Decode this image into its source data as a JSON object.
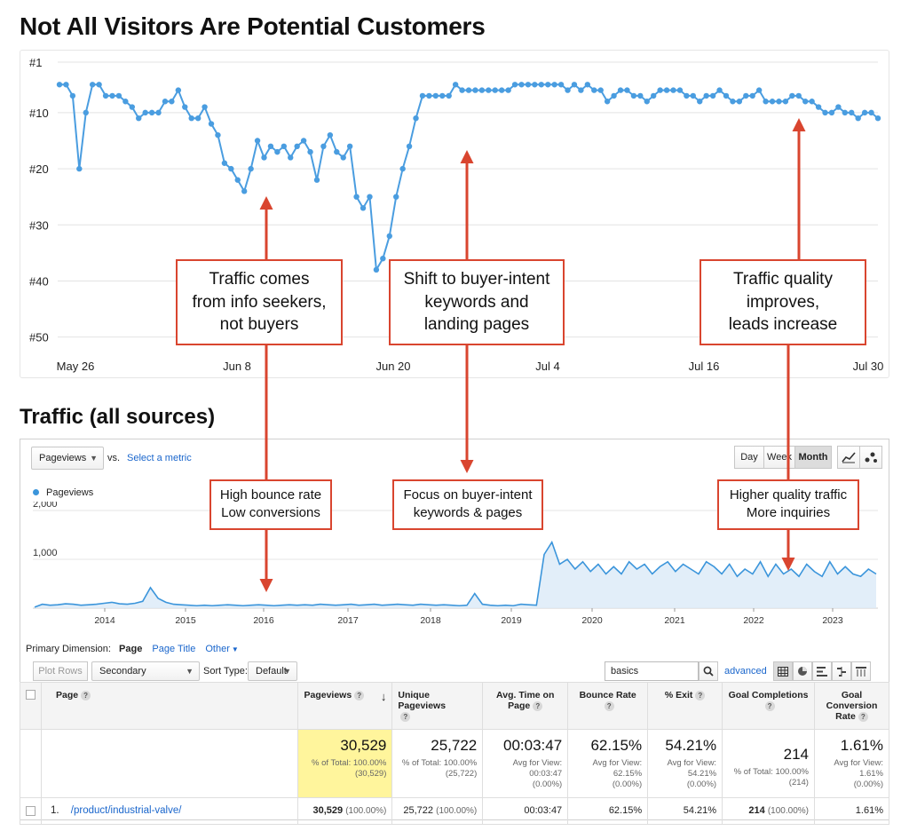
{
  "headings": {
    "rank_title": "Not All Visitors Are Potential Customers",
    "traffic_title": "Traffic (all sources)"
  },
  "rank_chart": {
    "y_ticks": [
      "#1",
      "#10",
      "#20",
      "#30",
      "#40",
      "#50"
    ],
    "x_labels": [
      "May 26",
      "Jun 8",
      "Jun 20",
      "Jul 4",
      "Jul 16",
      "Jul 30"
    ],
    "color": "#4a9de0",
    "annotation_color": "#d9452f"
  },
  "chart_data": [
    {
      "type": "line",
      "title": "Not All Visitors Are Potential Customers",
      "y_axis": "rank position (reversed, #1 at top)",
      "ylim": [
        1,
        55
      ],
      "x_range": [
        "May 26",
        "Jul 30"
      ],
      "series": [
        {
          "values": [
            5,
            5,
            7,
            20,
            10,
            5,
            5,
            7,
            7,
            7,
            8,
            9,
            11,
            10,
            10,
            10,
            8,
            8,
            6,
            9,
            11,
            11,
            9,
            12,
            14,
            19,
            20,
            22,
            24,
            20,
            15,
            18,
            16,
            17,
            16,
            18,
            16,
            15,
            17,
            22,
            16,
            14,
            17,
            18,
            16,
            25,
            27,
            25,
            38,
            36,
            32,
            25,
            20,
            16,
            11,
            7,
            7,
            7,
            7,
            7,
            5,
            6,
            6,
            6,
            6,
            6,
            6,
            6,
            6,
            5,
            5,
            5,
            5,
            5,
            5,
            5,
            5,
            6,
            5,
            6,
            5,
            6,
            6,
            8,
            7,
            6,
            6,
            7,
            7,
            8,
            7,
            6,
            6,
            6,
            6,
            7,
            7,
            8,
            7,
            7,
            6,
            7,
            8,
            8,
            7,
            7,
            6,
            8,
            8,
            8,
            8,
            7,
            7,
            8,
            8,
            9,
            10,
            10,
            9,
            10,
            10,
            11,
            10,
            10,
            11
          ]
        }
      ],
      "annotations": [
        "Traffic comes from info seekers, not buyers",
        "Shift to buyer-intent keywords and landing pages",
        "Traffic quality improves, leads increase"
      ]
    },
    {
      "type": "area",
      "title": "Pageviews",
      "x_labels": [
        "2014",
        "2015",
        "2016",
        "2017",
        "2018",
        "2019",
        "2020",
        "2021",
        "2022",
        "2023"
      ],
      "y_ticks": [
        "2,000",
        "1,000"
      ],
      "ylim": [
        0,
        2000
      ],
      "series": [
        {
          "name": "Pageviews",
          "values": [
            20,
            80,
            60,
            70,
            90,
            80,
            60,
            70,
            80,
            100,
            120,
            90,
            80,
            100,
            140,
            420,
            200,
            120,
            80,
            70,
            60,
            50,
            60,
            50,
            60,
            70,
            60,
            50,
            60,
            70,
            60,
            50,
            60,
            70,
            60,
            70,
            60,
            80,
            70,
            60,
            70,
            80,
            60,
            70,
            80,
            60,
            70,
            80,
            70,
            60,
            80,
            70,
            60,
            70,
            60,
            50,
            60,
            300,
            80,
            60,
            50,
            60,
            50,
            80,
            70,
            60,
            1100,
            1350,
            900,
            1000,
            800,
            950,
            750,
            900,
            700,
            850,
            700,
            950,
            800,
            900,
            700,
            850,
            950,
            750,
            900,
            800,
            700,
            950,
            850,
            700,
            900,
            650,
            800,
            700,
            950,
            650,
            900,
            700,
            800,
            650,
            900,
            750,
            650,
            950,
            700,
            850,
            700,
            650,
            800,
            700
          ]
        }
      ],
      "annotations": [
        "High bounce rate Low conversions",
        "Focus on buyer-intent keywords & pages",
        "Higher quality traffic More inquiries"
      ]
    }
  ],
  "callouts": {
    "rank_1": [
      "Traffic comes",
      "from info seekers,",
      "not buyers"
    ],
    "rank_2": [
      "Shift to buyer-intent",
      "keywords and",
      "landing pages"
    ],
    "rank_3": [
      "Traffic quality",
      "improves,",
      "leads increase"
    ],
    "ga_1": [
      "High bounce rate",
      "Low conversions"
    ],
    "ga_2": [
      "Focus on buyer-intent",
      "keywords & pages"
    ],
    "ga_3": [
      "Higher quality traffic",
      "More inquiries"
    ]
  },
  "ga": {
    "metric_select": "Pageviews",
    "vs": "vs.",
    "select_metric": "Select a metric",
    "period_buttons": [
      "Day",
      "Week",
      "Month"
    ],
    "active_period": "Month",
    "legend": "Pageviews",
    "y_ticks": [
      "2,000",
      "1,000"
    ],
    "x_labels": [
      "2014",
      "2015",
      "2016",
      "2017",
      "2018",
      "2019",
      "2020",
      "2021",
      "2022",
      "2023"
    ],
    "primary_dimension_label": "Primary Dimension:",
    "dim_page": "Page",
    "dim_page_title": "Page Title",
    "dim_other": "Other",
    "plot_rows": "Plot Rows",
    "secondary_dimension": "Secondary dimension",
    "sort_type_label": "Sort Type:",
    "sort_type_value": "Default",
    "search_value": "basics",
    "advanced": "advanced",
    "accent": "#1a66cc",
    "line_color": "#3b95db",
    "highlight": "#fff59c"
  },
  "table": {
    "headers": {
      "page": "Page",
      "pageviews": "Pageviews",
      "unique": "Unique Pageviews",
      "avg_time": "Avg. Time on Page",
      "bounce": "Bounce Rate",
      "exit": "% Exit",
      "goal_completions": "Goal Completions",
      "goal_rate": "Goal Conversion Rate"
    },
    "totals": {
      "pageviews": "30,529",
      "pageviews_sub1": "% of Total: 100.00%",
      "pageviews_sub2": "(30,529)",
      "unique": "25,722",
      "unique_sub1": "% of Total: 100.00%",
      "unique_sub2": "(25,722)",
      "avg_time": "00:03:47",
      "avg_time_sub1": "Avg for View:",
      "avg_time_sub2": "00:03:47",
      "avg_time_sub3": "(0.00%)",
      "bounce": "62.15%",
      "bounce_sub1": "Avg for View:",
      "bounce_sub2": "62.15%",
      "bounce_sub3": "(0.00%)",
      "exit": "54.21%",
      "exit_sub1": "Avg for View:",
      "exit_sub2": "54.21%",
      "exit_sub3": "(0.00%)",
      "goals": "214",
      "goals_sub1": "% of Total: 100.00%",
      "goals_sub2": "(214)",
      "rate": "1.61%",
      "rate_sub1": "Avg for View:",
      "rate_sub2": "1.61%",
      "rate_sub3": "(0.00%)"
    },
    "row": {
      "index": "1.",
      "page": "/product/industrial-valve/",
      "pageviews": "30,529",
      "pageviews_pct": "(100.00%)",
      "unique": "25,722",
      "unique_pct": "(100.00%)",
      "avg_time": "00:03:47",
      "bounce": "62.15%",
      "exit": "54.21%",
      "goals": "214",
      "goals_pct": "(100.00%)",
      "rate": "1.61%"
    }
  }
}
